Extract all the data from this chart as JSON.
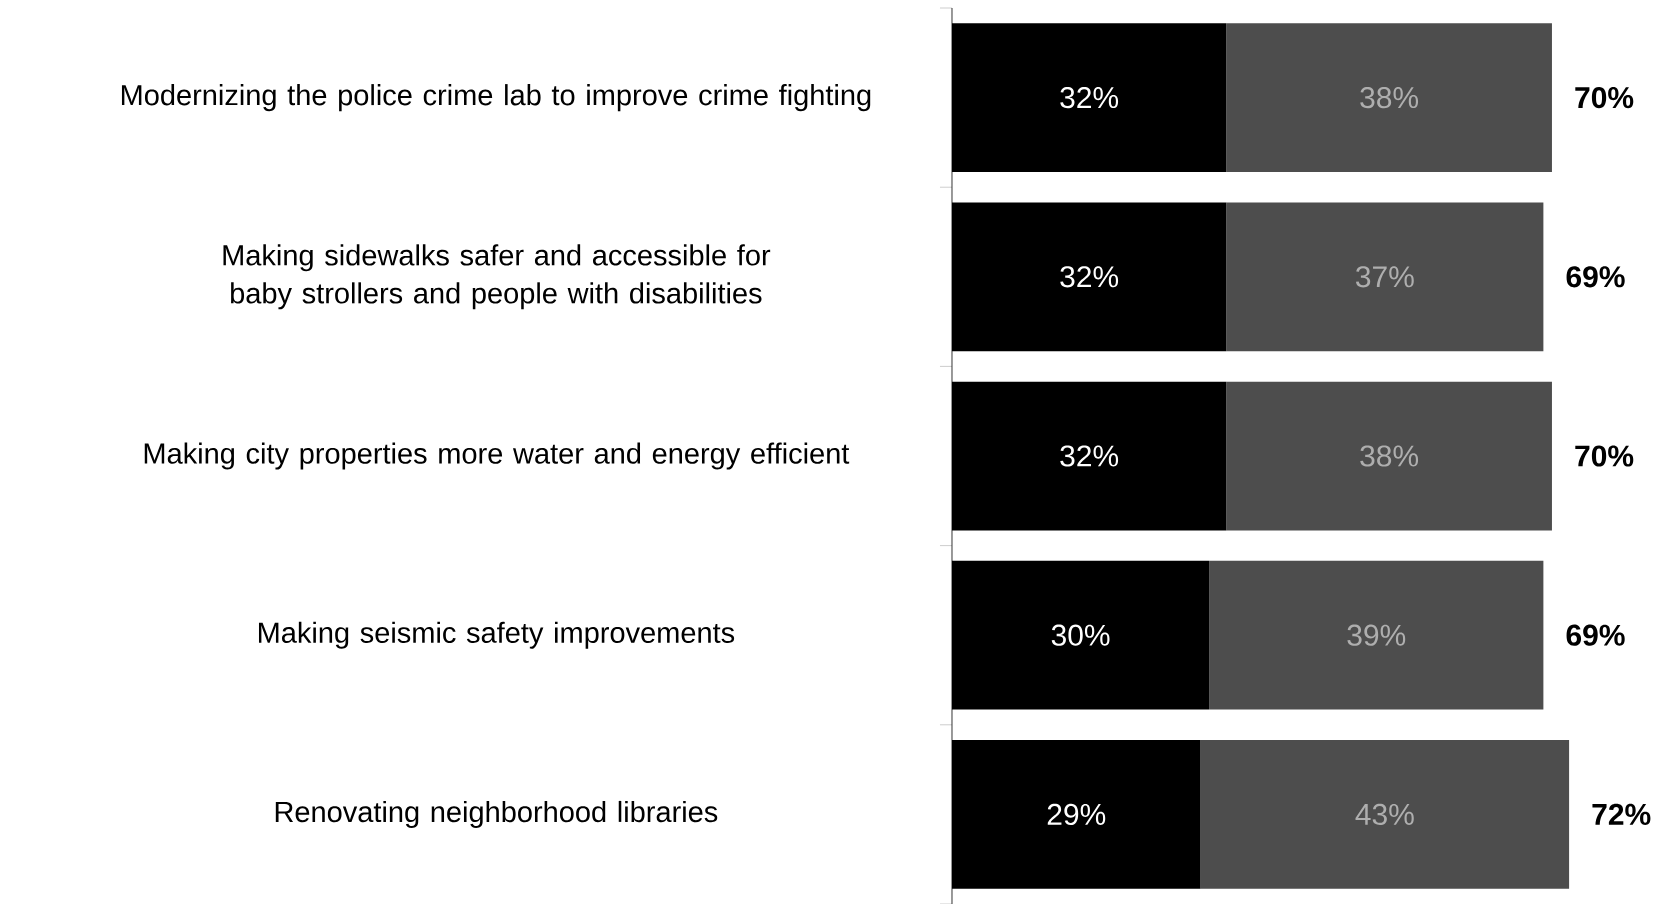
{
  "chart_data": {
    "type": "bar",
    "orientation": "horizontal",
    "stacked": true,
    "categories": [
      "Modernizing the police crime lab to improve crime fighting",
      "Making sidewalks safer and accessible for baby strollers and people with disabilities",
      "Making city properties more water and energy efficient",
      "Making seismic safety improvements",
      "Renovating neighborhood libraries"
    ],
    "series": [
      {
        "color": "#000000",
        "values": [
          32,
          32,
          32,
          30,
          29
        ],
        "value_labels": [
          "32%",
          "32%",
          "32%",
          "30%",
          "29%"
        ]
      },
      {
        "color": "#4d4d4d",
        "values": [
          38,
          37,
          38,
          39,
          43
        ],
        "value_labels": [
          "38%",
          "37%",
          "38%",
          "39%",
          "43%"
        ]
      }
    ],
    "totals": [
      "70%",
      "69%",
      "70%",
      "69%",
      "72%"
    ],
    "tick_labels": "y"
  }
}
